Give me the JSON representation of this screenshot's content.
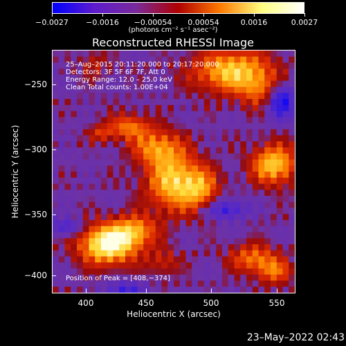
{
  "colorbar": {
    "tick_labels": [
      "−0.0027",
      "−0.0016",
      "−0.00054",
      "0.00054",
      "0.0016",
      "0.0027"
    ],
    "units": "(photons cm⁻² s⁻¹ asec⁻²)",
    "colors": [
      "#0000ff",
      "#5e1ccc",
      "#7a2a9a",
      "#b00000",
      "#ff7a00",
      "#ffff80",
      "#ffffff"
    ]
  },
  "title": "Reconstructed RHESSI Image",
  "annotations": {
    "time": "25–Aug–2015 20:11:20.000 to 20:17:20.000",
    "detectors": "Detectors: 3F 5F 6F 7F, Att 0",
    "energy": "Energy Range: 12.0 – 25.0 keV",
    "method": "Clean     Total counts: 1.00E+04",
    "peak": "Position of Peak = [408,−374]"
  },
  "axes": {
    "xlabel": "Heliocentric X (arcsec)",
    "ylabel": "Heliocentric Y (arcsec)",
    "xticks": [
      "400",
      "450",
      "500",
      "550"
    ],
    "yticks": [
      "−250",
      "−300",
      "−350",
      "−400"
    ]
  },
  "timestamp": "23–May–2022 02:43"
}
